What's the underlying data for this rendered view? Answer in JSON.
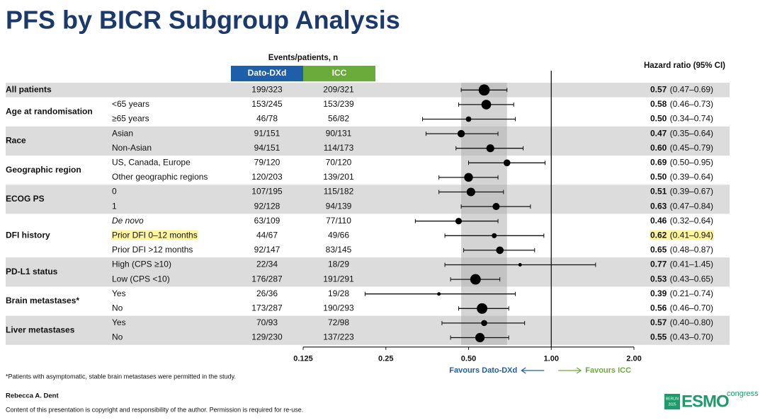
{
  "chart_data": {
    "type": "forest",
    "title": "PFS by BICR Subgroup Analysis",
    "events_header": "Events/patients, n",
    "arm_labels": [
      "Dato-DXd",
      "ICC"
    ],
    "arm_colors": [
      "#1f5ea8",
      "#6aab3c"
    ],
    "hr_header": "Hazard ratio (95% CI)",
    "xscale": "log",
    "xlim": [
      0.125,
      2
    ],
    "xticks": [
      0.125,
      0.25,
      {
        "value": 0.5,
        "label": "0.50"
      },
      {
        "value": 1,
        "label": "1.00"
      },
      {
        "value": 2,
        "label": "2.00"
      }
    ],
    "reference_line": 1,
    "shade_overall_ci": true,
    "favours_left": "Favours Dato-DXd",
    "favours_right": "Favours ICC",
    "groups": [
      {
        "name": "All patients",
        "rows": [
          {
            "events": [
              "199/323",
              "209/321"
            ],
            "hr": 0.57,
            "ci": [
              0.47,
              0.69
            ],
            "hr_label": "0.57",
            "ci_label": "(0.47–0.69)"
          }
        ]
      },
      {
        "name": "Age at randomisation",
        "rows": [
          {
            "subgroup": "<65 years",
            "events": [
              "153/245",
              "153/239"
            ],
            "hr": 0.58,
            "ci": [
              0.46,
              0.73
            ],
            "hr_label": "0.58",
            "ci_label": "(0.46–0.73)"
          },
          {
            "subgroup": "≥65 years",
            "events": [
              "46/78",
              "56/82"
            ],
            "hr": 0.5,
            "ci": [
              0.34,
              0.74
            ],
            "hr_label": "0.50",
            "ci_label": "(0.34–0.74)"
          }
        ]
      },
      {
        "name": "Race",
        "rows": [
          {
            "subgroup": "Asian",
            "events": [
              "91/151",
              "90/131"
            ],
            "hr": 0.47,
            "ci": [
              0.35,
              0.64
            ],
            "hr_label": "0.47",
            "ci_label": "(0.35–0.64)"
          },
          {
            "subgroup": "Non-Asian",
            "events": [
              "94/151",
              "114/173"
            ],
            "hr": 0.6,
            "ci": [
              0.45,
              0.79
            ],
            "hr_label": "0.60",
            "ci_label": "(0.45–0.79)"
          }
        ]
      },
      {
        "name": "Geographic region",
        "rows": [
          {
            "subgroup": "US, Canada, Europe",
            "events": [
              "79/120",
              "70/120"
            ],
            "hr": 0.69,
            "ci": [
              0.5,
              0.95
            ],
            "hr_label": "0.69",
            "ci_label": "(0.50–0.95)"
          },
          {
            "subgroup": "Other geographic regions",
            "events": [
              "120/203",
              "139/201"
            ],
            "hr": 0.5,
            "ci": [
              0.39,
              0.64
            ],
            "hr_label": "0.50",
            "ci_label": "(0.39–0.64)"
          }
        ]
      },
      {
        "name": "ECOG PS",
        "rows": [
          {
            "subgroup": "0",
            "events": [
              "107/195",
              "115/182"
            ],
            "hr": 0.51,
            "ci": [
              0.39,
              0.67
            ],
            "hr_label": "0.51",
            "ci_label": "(0.39–0.67)"
          },
          {
            "subgroup": "1",
            "events": [
              "92/128",
              "94/139"
            ],
            "hr": 0.63,
            "ci": [
              0.47,
              0.84
            ],
            "hr_label": "0.63",
            "ci_label": "(0.47–0.84)"
          }
        ]
      },
      {
        "name": "DFI history",
        "rows": [
          {
            "subgroup": "De novo",
            "italic": true,
            "events": [
              "63/109",
              "77/110"
            ],
            "hr": 0.46,
            "ci": [
              0.32,
              0.64
            ],
            "hr_label": "0.46",
            "ci_label": "(0.32–0.64)"
          },
          {
            "subgroup": "Prior DFI 0–12 months",
            "highlight": true,
            "events": [
              "44/67",
              "49/66"
            ],
            "hr": 0.62,
            "ci": [
              0.41,
              0.94
            ],
            "hr_label": "0.62",
            "ci_label": "(0.41–0.94)"
          },
          {
            "subgroup": "Prior DFI >12 months",
            "events": [
              "92/147",
              "83/145"
            ],
            "hr": 0.65,
            "ci": [
              0.48,
              0.87
            ],
            "hr_label": "0.65",
            "ci_label": "(0.48–0.87)"
          }
        ]
      },
      {
        "name": "PD-L1 status",
        "rows": [
          {
            "subgroup": "High (CPS ≥10)",
            "events": [
              "22/34",
              "18/29"
            ],
            "hr": 0.77,
            "ci": [
              0.41,
              1.45
            ],
            "hr_label": "0.77",
            "ci_label": "(0.41–1.45)"
          },
          {
            "subgroup": "Low (CPS <10)",
            "events": [
              "176/287",
              "191/291"
            ],
            "hr": 0.53,
            "ci": [
              0.43,
              0.65
            ],
            "hr_label": "0.53",
            "ci_label": "(0.43–0.65)"
          }
        ]
      },
      {
        "name": "Brain metastases*",
        "rows": [
          {
            "subgroup": "Yes",
            "events": [
              "26/36",
              "19/28"
            ],
            "hr": 0.39,
            "ci": [
              0.21,
              0.74
            ],
            "hr_label": "0.39",
            "ci_label": "(0.21–0.74)"
          },
          {
            "subgroup": "No",
            "events": [
              "173/287",
              "190/293"
            ],
            "hr": 0.56,
            "ci": [
              0.46,
              0.7
            ],
            "hr_label": "0.56",
            "ci_label": "(0.46–0.70)"
          }
        ]
      },
      {
        "name": "Liver metastases",
        "rows": [
          {
            "subgroup": "Yes",
            "events": [
              "70/93",
              "72/98"
            ],
            "hr": 0.57,
            "ci": [
              0.4,
              0.8
            ],
            "hr_label": "0.57",
            "ci_label": "(0.40–0.80)"
          },
          {
            "subgroup": "No",
            "events": [
              "129/230",
              "137/223"
            ],
            "hr": 0.55,
            "ci": [
              0.43,
              0.7
            ],
            "hr_label": "0.55",
            "ci_label": "(0.43–0.70)"
          }
        ]
      }
    ],
    "footnote": "*Patients with asymptomatic, stable brain metastases were permitted in the study.",
    "author": "Rebecca A. Dent",
    "copyright": "Content of this presentation is copyright and responsibility of the author. Permission is required for re-use."
  },
  "logo": {
    "city": "BERLIN",
    "year": "2025",
    "brand": "ESMO",
    "suffix": "congress"
  }
}
